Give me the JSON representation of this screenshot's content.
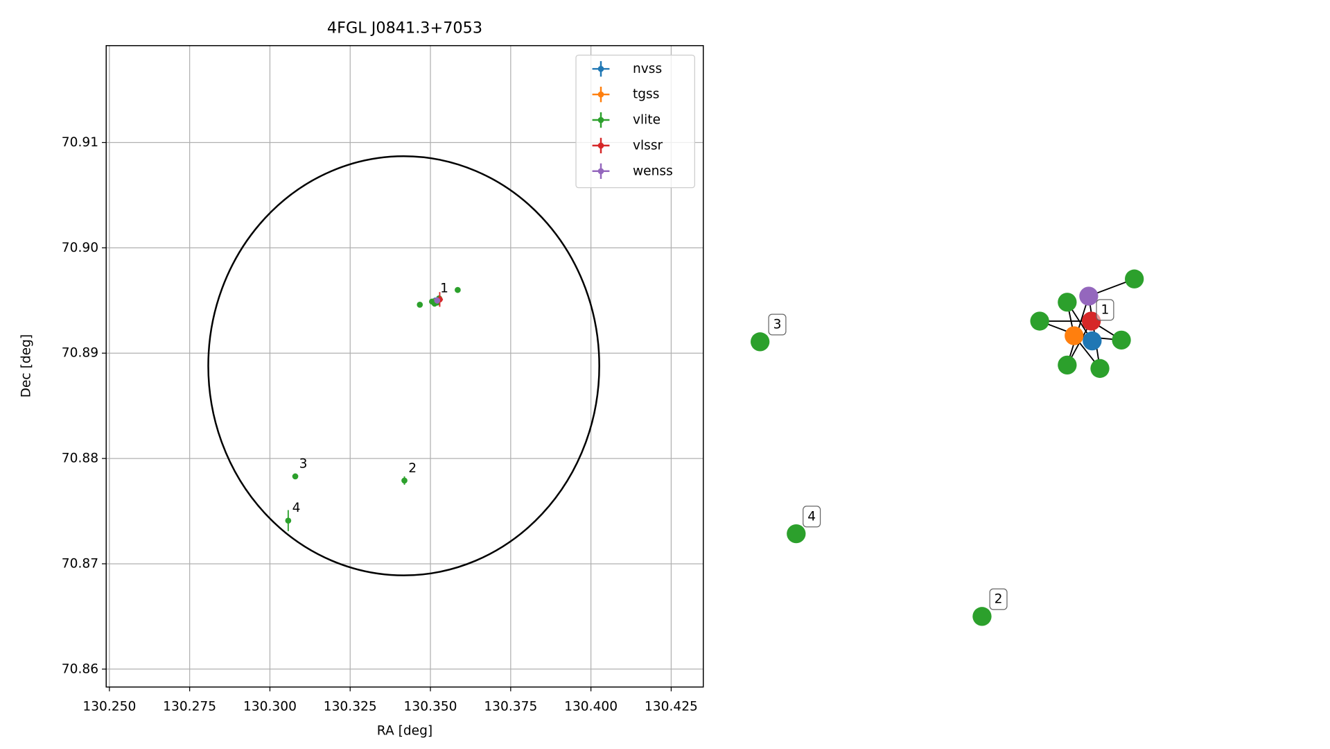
{
  "chart_data": {
    "type": "scatter",
    "title": "4FGL J0841.3+7053",
    "xlabel": "RA [deg]",
    "ylabel": "Dec [deg]",
    "xlim": [
      130.249,
      130.435
    ],
    "ylim": [
      70.8583,
      70.9192
    ],
    "xticks": [
      {
        "value": 130.25,
        "label": "130.250"
      },
      {
        "value": 130.275,
        "label": "130.275"
      },
      {
        "value": 130.3,
        "label": "130.300"
      },
      {
        "value": 130.325,
        "label": "130.325"
      },
      {
        "value": 130.35,
        "label": "130.350"
      },
      {
        "value": 130.375,
        "label": "130.375"
      },
      {
        "value": 130.4,
        "label": "130.400"
      },
      {
        "value": 130.425,
        "label": "130.425"
      }
    ],
    "yticks": [
      70.86,
      70.87,
      70.88,
      70.89,
      {
        "value": 70.9,
        "label": "70.90"
      },
      70.91
    ],
    "grid": true,
    "legend": "upper right",
    "ellipse": {
      "x": 130.3417,
      "y": 70.8888,
      "width_x": 0.0609,
      "height_y": 0.0199,
      "color": "#000000"
    },
    "series": [
      {
        "name": "nvss",
        "color": "#1f77b4",
        "x": [
          130.3515
        ],
        "y": [
          70.895
        ],
        "xerr": [
          0.0003
        ],
        "yerr": [
          0.0001
        ]
      },
      {
        "name": "tgss",
        "color": "#ff7f0e",
        "x": [
          130.3513
        ],
        "y": [
          70.8949
        ],
        "xerr": [
          0.0005
        ],
        "yerr": [
          0.0002
        ]
      },
      {
        "name": "vlite",
        "color": "#2ca02c",
        "x": [
          130.3467,
          130.3585,
          130.3513,
          130.3505,
          130.3527,
          130.3521,
          130.3419,
          130.3079,
          130.3057
        ],
        "y": [
          70.8946,
          70.896,
          70.8947,
          70.8949,
          70.8952,
          70.8948,
          70.8779,
          70.8783,
          70.8741
        ],
        "xerr": [
          0.0002,
          0.0002,
          0.0002,
          0.0002,
          0.0002,
          0.0002,
          0.0003,
          0.0002,
          0.0005
        ],
        "yerr": [
          0.0001,
          0.0001,
          0.0001,
          0.0001,
          0.0001,
          0.0001,
          0.0004,
          0.0001,
          0.001
        ]
      },
      {
        "name": "vlssr",
        "color": "#d62728",
        "x": [
          130.3529
        ],
        "y": [
          70.8951
        ],
        "xerr": [
          0.001
        ],
        "yerr": [
          0.0007
        ]
      },
      {
        "name": "wenss",
        "color": "#9467bd",
        "x": [
          130.3521
        ],
        "y": [
          70.895
        ],
        "xerr": [
          0.0005
        ],
        "yerr": [
          0.0003
        ]
      }
    ],
    "annotations": [
      "1",
      "2",
      "3",
      "4"
    ]
  },
  "graph": {
    "labels": [
      "1",
      "3",
      "4",
      "2"
    ]
  }
}
